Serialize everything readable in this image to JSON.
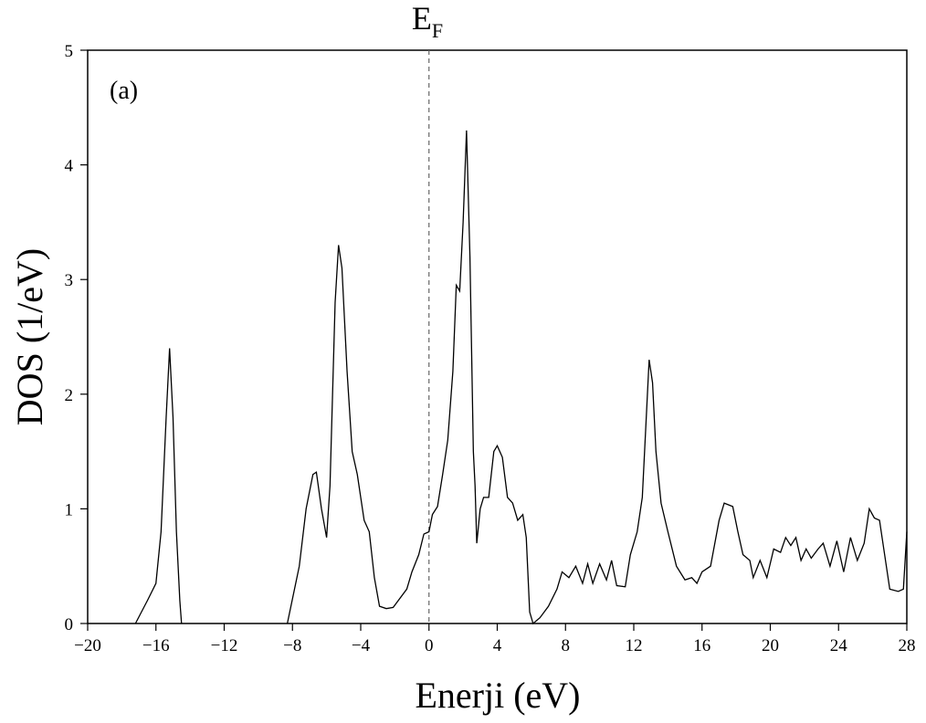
{
  "chart_data": {
    "type": "line",
    "x_label": "Enerji (eV)",
    "y_label": "DOS (1/eV)",
    "panel_label": "(a)",
    "fermi_label": "E",
    "fermi_subscript": "F",
    "fermi_energy": 0,
    "color": "#000000",
    "x": [
      -17.2,
      -16.5,
      -16,
      -15.7,
      -15.4,
      -15.2,
      -15.0,
      -14.8,
      -14.6,
      -14.5,
      null,
      -8.3,
      -7.6,
      -7.2,
      -6.8,
      -6.6,
      -6.3,
      -6.0,
      -5.8,
      -5.5,
      -5.3,
      -5.1,
      -4.8,
      -4.5,
      -4.2,
      -3.8,
      -3.5,
      -3.2,
      -2.9,
      -2.5,
      -2.1,
      -1.8,
      -1.3,
      -1.0,
      -0.6,
      -0.3,
      0,
      0.2,
      0.5,
      0.8,
      1.1,
      1.4,
      1.6,
      1.8,
      2.0,
      2.2,
      2.4,
      2.6,
      2.7,
      2.8,
      3.0,
      3.2,
      3.5,
      3.8,
      4.0,
      4.3,
      4.6,
      4.9,
      5.2,
      5.5,
      5.7,
      5.9,
      6.1,
      6.5,
      7.0,
      7.5,
      7.8,
      8.2,
      8.6,
      9.0,
      9.3,
      9.6,
      10.0,
      10.4,
      10.7,
      11.0,
      11.5,
      11.8,
      12.2,
      12.5,
      12.8,
      12.9,
      13.1,
      13.3,
      13.6,
      14.0,
      14.5,
      15.0,
      15.4,
      15.7,
      16.0,
      16.5,
      17.0,
      17.3,
      17.8,
      18.1,
      18.4,
      18.8,
      19.0,
      19.4,
      19.8,
      20.2,
      20.6,
      20.9,
      21.2,
      21.5,
      21.8,
      22.1,
      22.4,
      22.8,
      23.1,
      23.5,
      23.9,
      24.3,
      24.7,
      25.1,
      25.5,
      25.8,
      26.1,
      26.4,
      26.8,
      27.0,
      27.5,
      27.8,
      28.0
    ],
    "values": [
      0,
      0.2,
      0.35,
      0.8,
      1.8,
      2.4,
      1.8,
      0.8,
      0.2,
      0,
      null,
      0,
      0.5,
      1.0,
      1.3,
      1.32,
      1.0,
      0.75,
      1.2,
      2.8,
      3.3,
      3.1,
      2.2,
      1.5,
      1.3,
      0.9,
      0.8,
      0.4,
      0.15,
      0.13,
      0.14,
      0.2,
      0.3,
      0.45,
      0.6,
      0.78,
      0.8,
      0.95,
      1.02,
      1.3,
      1.6,
      2.2,
      2.95,
      2.9,
      3.5,
      4.3,
      3.2,
      1.5,
      1.2,
      0.7,
      1.0,
      1.1,
      1.1,
      1.5,
      1.55,
      1.45,
      1.1,
      1.05,
      0.9,
      0.95,
      0.75,
      0.1,
      0,
      0.05,
      0.15,
      0.3,
      0.45,
      0.4,
      0.5,
      0.35,
      0.52,
      0.35,
      0.52,
      0.38,
      0.55,
      0.33,
      0.32,
      0.6,
      0.8,
      1.1,
      2.0,
      2.3,
      2.1,
      1.5,
      1.05,
      0.8,
      0.5,
      0.38,
      0.4,
      0.35,
      0.45,
      0.5,
      0.9,
      1.05,
      1.02,
      0.8,
      0.6,
      0.55,
      0.4,
      0.55,
      0.4,
      0.65,
      0.62,
      0.75,
      0.68,
      0.75,
      0.55,
      0.65,
      0.57,
      0.65,
      0.7,
      0.5,
      0.72,
      0.45,
      0.75,
      0.55,
      0.7,
      1.0,
      0.92,
      0.9,
      0.5,
      0.3,
      0.28,
      0.3,
      0.8
    ],
    "xlim": [
      -20,
      28
    ],
    "ylim": [
      0,
      5
    ],
    "xticks": [
      {
        "value": -20,
        "label": "−20"
      },
      {
        "value": -16,
        "label": "−16"
      },
      {
        "value": -12,
        "label": "−12"
      },
      {
        "value": -8,
        "label": "−8"
      },
      {
        "value": -4,
        "label": "−4"
      },
      0,
      4,
      8,
      12,
      16,
      20,
      24,
      28
    ],
    "yticks": [
      0,
      1,
      2,
      3,
      4,
      5
    ]
  }
}
